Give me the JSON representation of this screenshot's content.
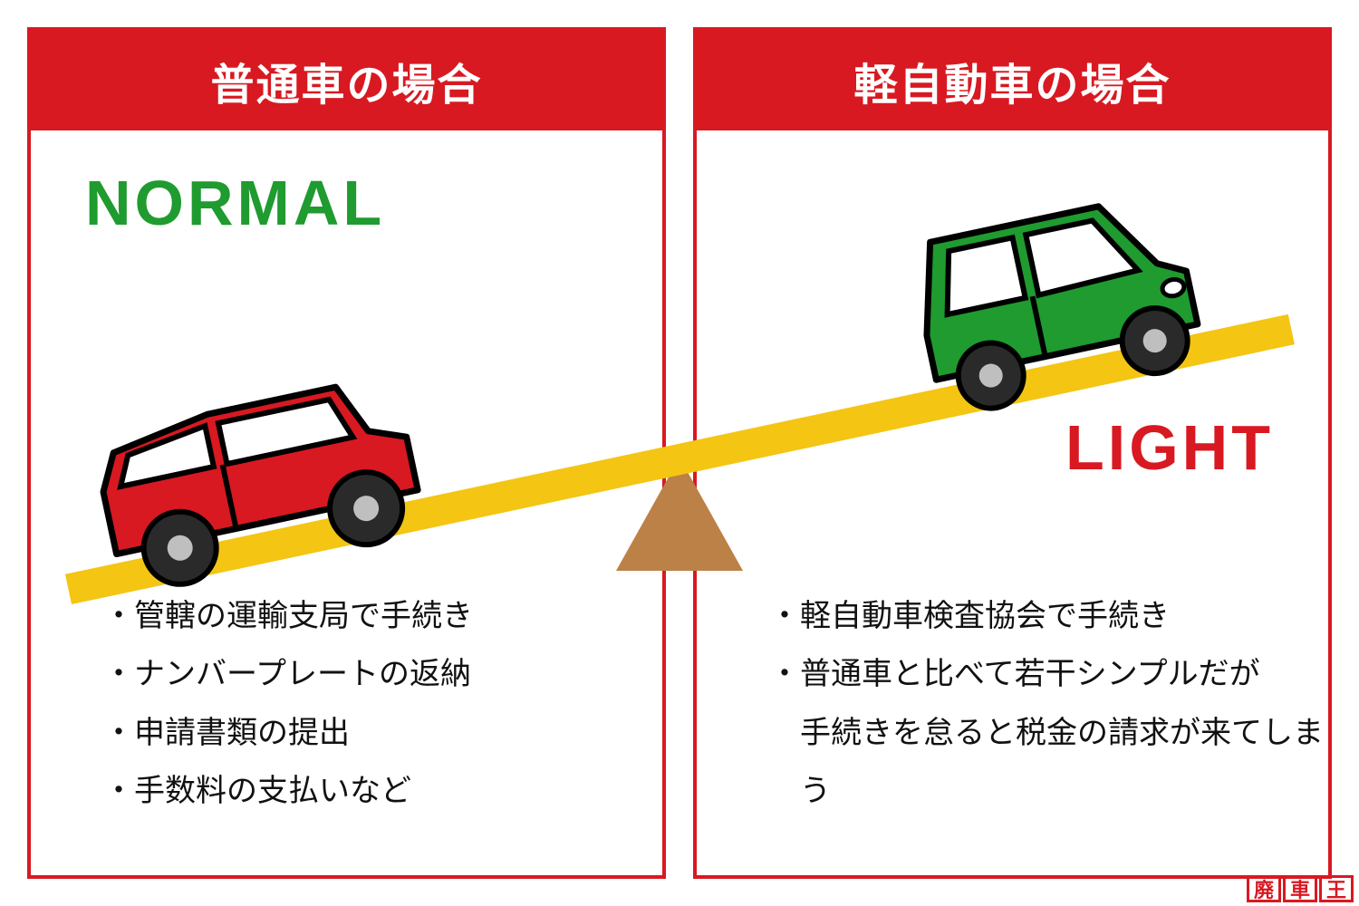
{
  "colors": {
    "red": "#d81921",
    "green": "#1f9b2f",
    "yellow": "#f4c513",
    "brown": "#bb8146",
    "black": "#111111",
    "white": "#ffffff",
    "wheel": "#2a2a2a",
    "wheel_hub": "#bfbfbf"
  },
  "left": {
    "title": "普通車の場合",
    "big_label": "NORMAL",
    "big_label_color": "#1f9b2f",
    "border_color": "#d81921",
    "header_bg": "#d81921",
    "bullets": [
      "管轄の運輸支局で手続き",
      "ナンバープレートの返納",
      "申請書類の提出",
      "手数料の支払いなど"
    ]
  },
  "right": {
    "title": "軽自動車の場合",
    "big_label": "LIGHT",
    "big_label_color": "#d81921",
    "border_color": "#d81921",
    "header_bg": "#d81921",
    "bullets_html": [
      {
        "type": "line",
        "text": "軽自動車検査協会で手続き"
      },
      {
        "type": "line",
        "text": "普通車と比べて若干シンプルだが"
      },
      {
        "type": "cont",
        "text": "手続きを怠ると税金の請求が来てしまう"
      }
    ]
  },
  "seesaw": {
    "angle_deg": -12,
    "fulcrum_color": "#bb8146",
    "beam_color": "#f4c513",
    "left_car_color": "#d81921",
    "right_car_color": "#1f9b2f"
  },
  "logo": {
    "chars": [
      "廃",
      "車",
      "王"
    ],
    "text_color": "#d81921",
    "border_color": "#d81921"
  }
}
